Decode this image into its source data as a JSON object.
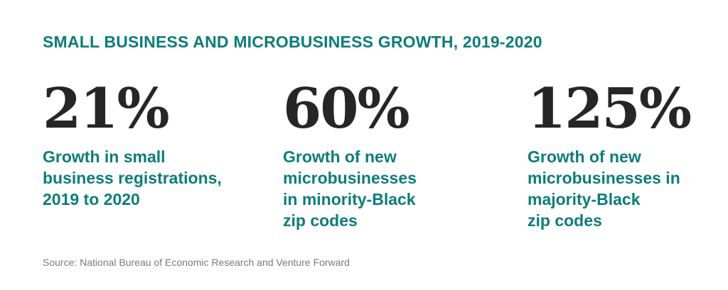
{
  "title": "SMALL BUSINESS AND MICROBUSINESS GROWTH, 2019-2020",
  "stats": [
    {
      "value": "21%",
      "description_lines": [
        "Growth in small",
        "business registrations,",
        "2019 to 2020"
      ]
    },
    {
      "value": "60%",
      "description_lines": [
        "Growth of new",
        "microbusinesses",
        "in minority-Black",
        "zip codes"
      ]
    },
    {
      "value": "125%",
      "description_lines": [
        "Growth of new",
        "microbusinesses in",
        "majority-Black",
        "zip codes"
      ]
    }
  ],
  "source": "Source: National Bureau of Economic Research and Venture Forward",
  "colors": {
    "accent": "#0d7c7a",
    "value_text": "#262626",
    "source_text": "#7a7a7a",
    "background": "#ffffff"
  }
}
